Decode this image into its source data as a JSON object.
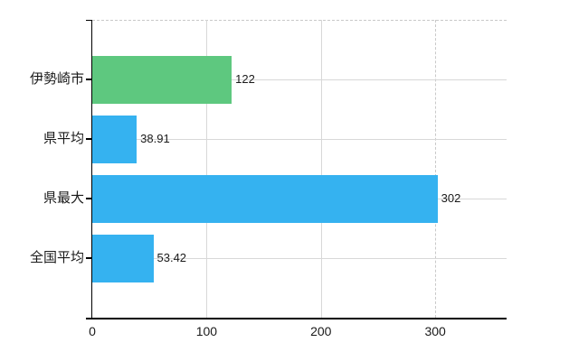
{
  "chart_data": {
    "type": "bar",
    "orientation": "horizontal",
    "title": "",
    "xlabel": "",
    "ylabel": "",
    "legend_position": "none",
    "categories": [
      "伊勢崎市",
      "県平均",
      "県最大",
      "全国平均"
    ],
    "series": [
      {
        "name": "value",
        "values": [
          122,
          38.91,
          302,
          53.42
        ]
      }
    ],
    "value_labels": [
      "122",
      "38.91",
      "302",
      "53.42"
    ],
    "bar_colors": [
      "#5ec87f",
      "#35b2f0",
      "#35b2f0",
      "#35b2f0"
    ],
    "x_ticks": [
      {
        "value": 0,
        "label": "0"
      },
      {
        "value": 100,
        "label": "100"
      },
      {
        "value": 200,
        "label": "200"
      },
      {
        "value": 300,
        "label": "300"
      }
    ],
    "xlim": [
      0,
      362.4
    ],
    "grid": {
      "horizontal": "at-category-centers",
      "vertical_solid": [
        100,
        200
      ],
      "vertical_dashed": [
        300
      ],
      "plot_top_border": "dashed"
    },
    "colors": {
      "grid": "#d8d8d8",
      "dashed_line": "#c9c9c9",
      "axis": "#000000",
      "text": "#1a1a1a",
      "background": "#ffffff"
    }
  }
}
